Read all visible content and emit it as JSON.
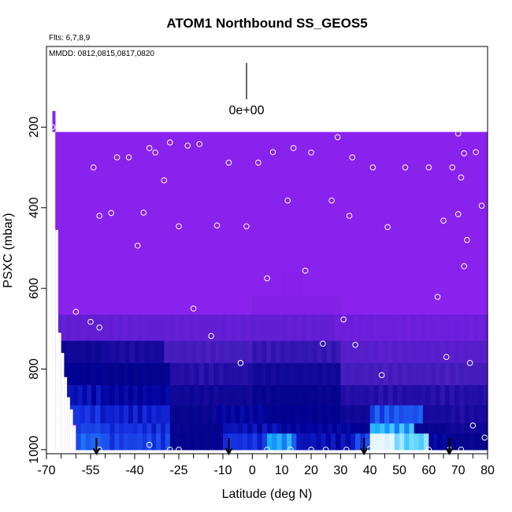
{
  "chart_data": {
    "type": "heatmap",
    "title": "ATOM1 Northbound SS_GEOS5",
    "annotations": {
      "flights": "Flts: 6,7,8,9",
      "dates": "MMDD: 0812,0815,0817,0820",
      "colorbar_label": "0e+00"
    },
    "xlabel": "Latitude (deg N)",
    "ylabel": "PSXC (mbar)",
    "xlim": [
      -70,
      80
    ],
    "ylim": [
      1010,
      0
    ],
    "x_ticks_major": [
      -70,
      -55,
      -40,
      -25,
      -10,
      0,
      10,
      20,
      30,
      40,
      50,
      60,
      70,
      80
    ],
    "x_ticks_minor": [
      -65,
      -60,
      -50,
      -45,
      -35,
      -30,
      -20,
      -15,
      -5,
      5,
      15,
      25,
      35,
      45,
      55,
      65,
      75
    ],
    "y_ticks": [
      200,
      400,
      600,
      800,
      1000
    ],
    "colors": {
      "background_field": "#8a22ee",
      "low": "#00008a",
      "mid": "#2438e8",
      "high": "#14c8ff",
      "peak": "#e6f7ff"
    },
    "field": {
      "top_pressure": 212,
      "bottom_pressure": 1000,
      "lat_range": [
        -68,
        80
      ],
      "layers": [
        {
          "p_top": 665,
          "p_bot": 730,
          "segments": [
            [
              -68,
              28,
              0.03
            ],
            [
              28,
              80,
              0.02
            ]
          ]
        },
        {
          "p_top": 730,
          "p_bot": 785,
          "segments": [
            [
              -68,
              -50,
              0.15
            ],
            [
              -50,
              -30,
              0.12
            ],
            [
              -30,
              0,
              0.06
            ],
            [
              0,
              30,
              0.08
            ],
            [
              30,
              80,
              0.04
            ]
          ]
        },
        {
          "p_top": 785,
          "p_bot": 840,
          "segments": [
            [
              -66,
              -50,
              0.25
            ],
            [
              -50,
              -28,
              0.22
            ],
            [
              -28,
              0,
              0.1
            ],
            [
              0,
              30,
              0.14
            ],
            [
              30,
              80,
              0.06
            ]
          ]
        },
        {
          "p_top": 840,
          "p_bot": 890,
          "segments": [
            [
              -64,
              -50,
              0.35
            ],
            [
              -50,
              -28,
              0.3
            ],
            [
              -28,
              0,
              0.15
            ],
            [
              0,
              30,
              0.2
            ],
            [
              30,
              80,
              0.1
            ]
          ]
        },
        {
          "p_top": 890,
          "p_bot": 935,
          "segments": [
            [
              -62,
              -50,
              0.45
            ],
            [
              -50,
              -28,
              0.4
            ],
            [
              -28,
              -12,
              0.18
            ],
            [
              -12,
              5,
              0.3
            ],
            [
              5,
              30,
              0.25
            ],
            [
              30,
              40,
              0.15
            ],
            [
              40,
              58,
              0.55
            ],
            [
              58,
              80,
              0.12
            ]
          ]
        },
        {
          "p_top": 935,
          "p_bot": 960,
          "segments": [
            [
              -60,
              -50,
              0.5
            ],
            [
              -50,
              -28,
              0.45
            ],
            [
              -28,
              -10,
              0.2
            ],
            [
              -10,
              10,
              0.35
            ],
            [
              10,
              35,
              0.3
            ],
            [
              35,
              40,
              0.25
            ],
            [
              40,
              55,
              0.75
            ],
            [
              55,
              66,
              0.2
            ],
            [
              66,
              80,
              0.15
            ]
          ]
        },
        {
          "p_top": 960,
          "p_bot": 1000,
          "segments": [
            [
              -60,
              -50,
              0.58
            ],
            [
              -50,
              -28,
              0.5
            ],
            [
              -28,
              -10,
              0.22
            ],
            [
              -10,
              5,
              0.45
            ],
            [
              5,
              15,
              0.7
            ],
            [
              15,
              35,
              0.35
            ],
            [
              35,
              40,
              0.5
            ],
            [
              40,
              50,
              1.0
            ],
            [
              50,
              60,
              0.85
            ],
            [
              60,
              66,
              0.3
            ],
            [
              66,
              80,
              0.2
            ]
          ]
        }
      ],
      "left_edge_steps": [
        [
          -68,
          212
        ],
        [
          -67,
          455
        ],
        [
          -66,
          710
        ],
        [
          -65,
          760
        ],
        [
          -64,
          820
        ],
        [
          -63,
          870
        ],
        [
          -62,
          900
        ],
        [
          -61,
          940
        ]
      ],
      "right_edge_steps": [
        [
          78,
          212
        ],
        [
          78.5,
          420
        ],
        [
          79,
          430
        ],
        [
          80,
          1000
        ]
      ]
    },
    "obs_points": [
      [
        -68,
        200
      ],
      [
        -68,
        393
      ],
      [
        -68,
        667
      ],
      [
        -60,
        658
      ],
      [
        -55,
        683
      ],
      [
        -52,
        697
      ],
      [
        -54,
        300
      ],
      [
        -52,
        420
      ],
      [
        -48,
        413
      ],
      [
        -46,
        275
      ],
      [
        -42,
        275
      ],
      [
        -39,
        494
      ],
      [
        -37,
        412
      ],
      [
        -35,
        252
      ],
      [
        -33,
        263
      ],
      [
        -30,
        332
      ],
      [
        -28,
        238
      ],
      [
        -25,
        446
      ],
      [
        -22,
        246
      ],
      [
        -20,
        650
      ],
      [
        -18,
        242
      ],
      [
        -14,
        718
      ],
      [
        -12,
        444
      ],
      [
        -8,
        288
      ],
      [
        -4,
        785
      ],
      [
        -2,
        446
      ],
      [
        2,
        288
      ],
      [
        5,
        575
      ],
      [
        7,
        262
      ],
      [
        12,
        382
      ],
      [
        14,
        252
      ],
      [
        18,
        556
      ],
      [
        20,
        263
      ],
      [
        24,
        737
      ],
      [
        27,
        382
      ],
      [
        29,
        225
      ],
      [
        31,
        677
      ],
      [
        33,
        420
      ],
      [
        34,
        275
      ],
      [
        35,
        740
      ],
      [
        41,
        300
      ],
      [
        44,
        815
      ],
      [
        46,
        448
      ],
      [
        52,
        300
      ],
      [
        60,
        300
      ],
      [
        63,
        621
      ],
      [
        65,
        432
      ],
      [
        66,
        770
      ],
      [
        68,
        300
      ],
      [
        70,
        216
      ],
      [
        70,
        416
      ],
      [
        71,
        325
      ],
      [
        72,
        265
      ],
      [
        72,
        545
      ],
      [
        73,
        480
      ],
      [
        74,
        785
      ],
      [
        75,
        940
      ],
      [
        76,
        262
      ],
      [
        78,
        395
      ],
      [
        79,
        970
      ],
      [
        -52,
        1000
      ],
      [
        -35,
        988
      ],
      [
        -28,
        1000
      ],
      [
        -25,
        1000
      ],
      [
        5,
        1000
      ],
      [
        13,
        1000
      ],
      [
        20,
        1000
      ],
      [
        25,
        1000
      ],
      [
        32,
        1000
      ],
      [
        40,
        998
      ],
      [
        60,
        1000
      ],
      [
        67,
        1000
      ],
      [
        71,
        1000
      ]
    ],
    "arrows_lat": [
      -53,
      -8,
      38,
      67
    ]
  }
}
